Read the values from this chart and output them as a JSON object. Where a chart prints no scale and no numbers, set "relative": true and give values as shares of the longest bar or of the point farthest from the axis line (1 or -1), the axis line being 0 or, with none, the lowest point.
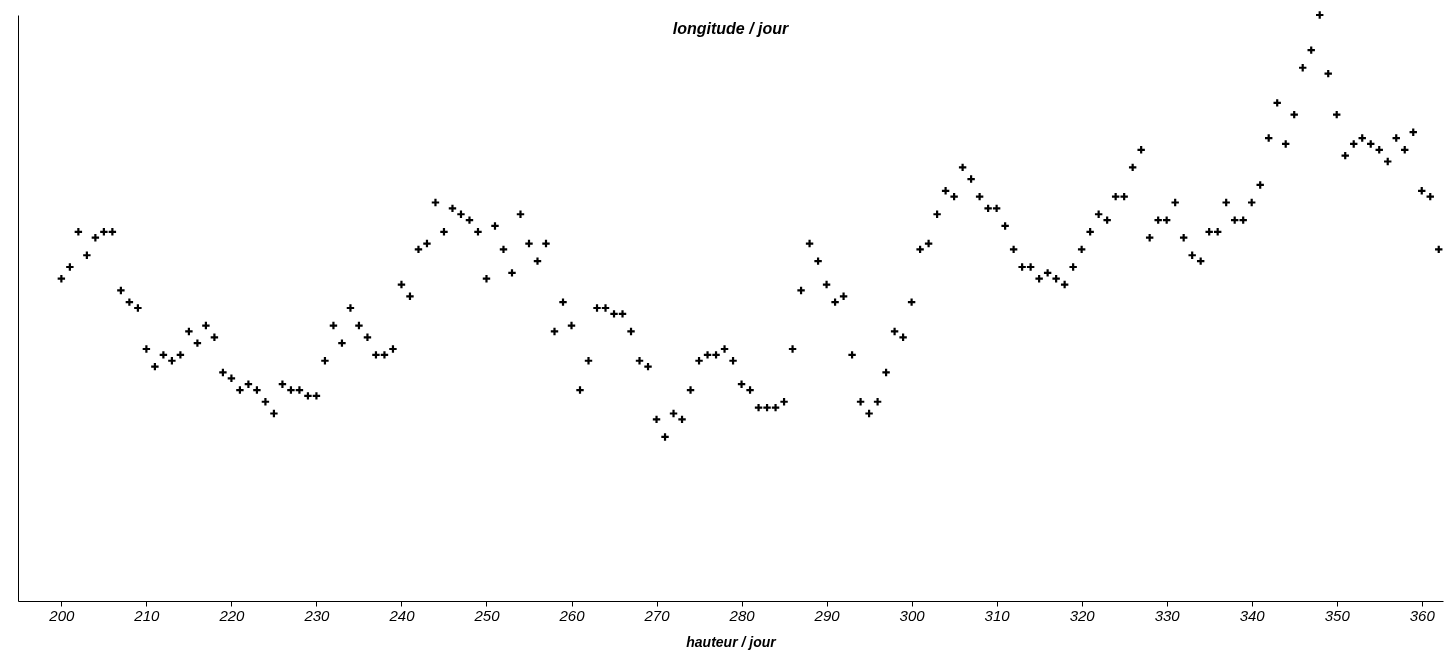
{
  "chart_data": {
    "type": "scatter",
    "title": "longitude / jour",
    "xlabel": "hauteur / jour",
    "relative": true,
    "marker": "cross",
    "grid": false,
    "xlim": [
      194.9,
      362.5
    ],
    "xticks": [
      200,
      210,
      220,
      230,
      240,
      250,
      260,
      270,
      280,
      290,
      300,
      310,
      320,
      330,
      340,
      350,
      360
    ],
    "x": [
      200,
      201,
      202,
      203,
      204,
      205,
      206,
      207,
      208,
      209,
      210,
      211,
      212,
      213,
      214,
      215,
      216,
      217,
      218,
      219,
      220,
      221,
      222,
      223,
      224,
      225,
      226,
      227,
      228,
      229,
      230,
      231,
      232,
      233,
      234,
      235,
      236,
      237,
      238,
      239,
      240,
      241,
      242,
      243,
      244,
      245,
      246,
      247,
      248,
      249,
      250,
      251,
      252,
      253,
      254,
      255,
      256,
      257,
      258,
      259,
      260,
      261,
      262,
      263,
      264,
      265,
      266,
      267,
      268,
      269,
      270,
      271,
      272,
      273,
      274,
      275,
      276,
      277,
      278,
      279,
      280,
      281,
      282,
      283,
      284,
      285,
      286,
      287,
      288,
      289,
      290,
      291,
      292,
      293,
      294,
      295,
      296,
      297,
      298,
      299,
      300,
      301,
      302,
      303,
      304,
      305,
      306,
      307,
      308,
      309,
      310,
      311,
      312,
      313,
      314,
      315,
      316,
      317,
      318,
      319,
      320,
      321,
      322,
      323,
      324,
      325,
      326,
      327,
      328,
      329,
      330,
      331,
      332,
      333,
      334,
      335,
      336,
      337,
      338,
      339,
      340,
      341,
      342,
      343,
      344,
      345,
      346,
      347,
      348,
      349,
      350,
      351,
      352,
      353,
      354,
      355,
      356,
      357,
      358,
      359,
      360,
      361,
      362
    ],
    "series": [
      {
        "color": "#000000",
        "values": [
          0.55,
          0.57,
          0.63,
          0.59,
          0.62,
          0.63,
          0.63,
          0.53,
          0.51,
          0.5,
          0.43,
          0.4,
          0.42,
          0.41,
          0.42,
          0.46,
          0.44,
          0.47,
          0.45,
          0.39,
          0.38,
          0.36,
          0.37,
          0.36,
          0.34,
          0.32,
          0.37,
          0.36,
          0.36,
          0.35,
          0.35,
          0.41,
          0.47,
          0.44,
          0.5,
          0.47,
          0.45,
          0.42,
          0.42,
          0.43,
          0.54,
          0.52,
          0.6,
          0.61,
          0.68,
          0.63,
          0.67,
          0.66,
          0.65,
          0.63,
          0.55,
          0.64,
          0.6,
          0.56,
          0.66,
          0.61,
          0.58,
          0.61,
          0.46,
          0.51,
          0.47,
          0.36,
          0.41,
          0.5,
          0.5,
          0.49,
          0.49,
          0.46,
          0.41,
          0.4,
          0.31,
          0.28,
          0.32,
          0.31,
          0.36,
          0.41,
          0.42,
          0.42,
          0.43,
          0.41,
          0.37,
          0.36,
          0.33,
          0.33,
          0.33,
          0.34,
          0.43,
          0.53,
          0.61,
          0.58,
          0.54,
          0.51,
          0.52,
          0.42,
          0.34,
          0.32,
          0.34,
          0.39,
          0.46,
          0.45,
          0.51,
          0.6,
          0.61,
          0.66,
          0.7,
          0.69,
          0.74,
          0.72,
          0.69,
          0.67,
          0.67,
          0.64,
          0.6,
          0.57,
          0.57,
          0.55,
          0.56,
          0.55,
          0.54,
          0.57,
          0.6,
          0.63,
          0.66,
          0.65,
          0.69,
          0.69,
          0.74,
          0.77,
          0.62,
          0.65,
          0.65,
          0.68,
          0.62,
          0.59,
          0.58,
          0.63,
          0.63,
          0.68,
          0.65,
          0.65,
          0.68,
          0.71,
          0.79,
          0.85,
          0.78,
          0.83,
          0.91,
          0.94,
          1,
          0.9,
          0.83,
          0.76,
          0.78,
          0.79,
          0.78,
          0.77,
          0.75,
          0.79,
          0.77,
          0.8,
          0.7,
          0.69,
          0.6
        ]
      }
    ]
  }
}
